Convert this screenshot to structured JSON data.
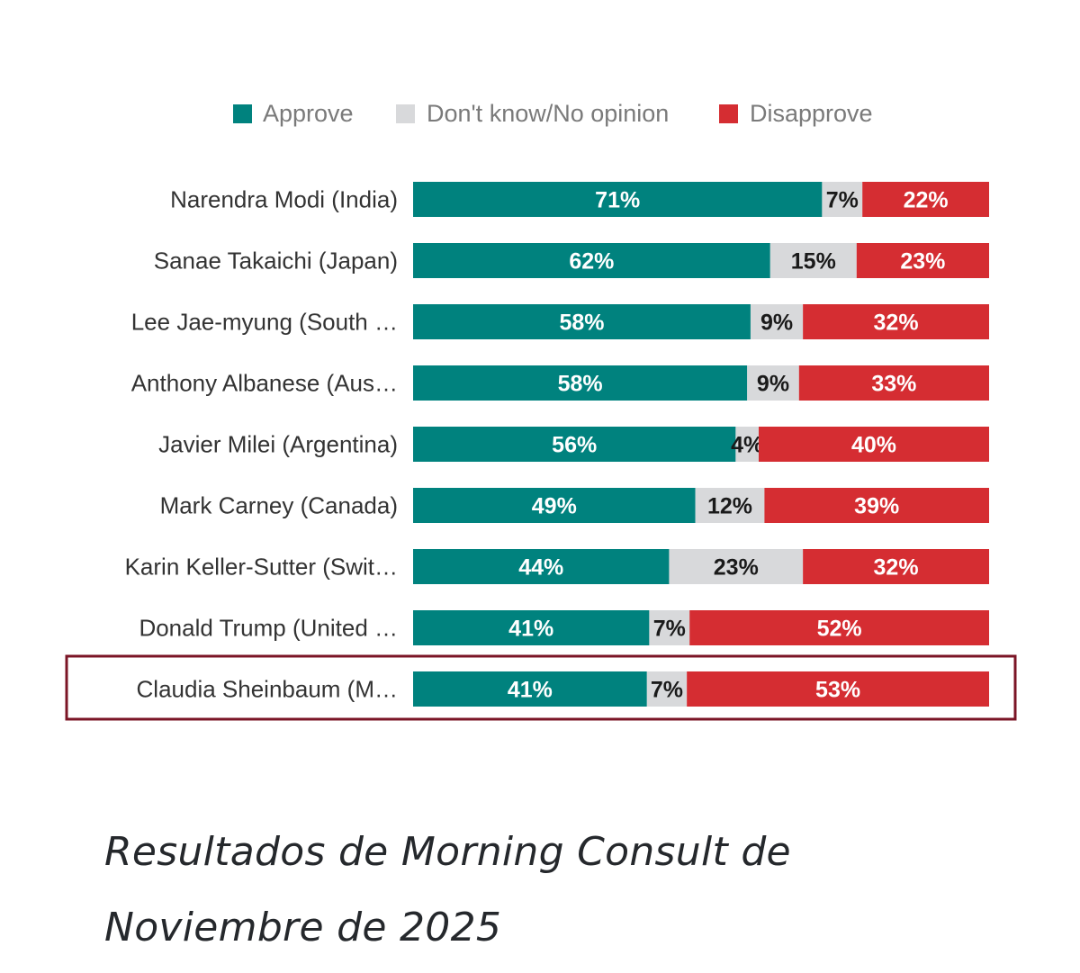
{
  "chart_data": {
    "type": "bar",
    "orientation": "horizontal",
    "stacked": true,
    "normalized_percent": true,
    "categories": [
      "Narendra Modi (India)",
      "Sanae Takaichi (Japan)",
      "Lee Jae-myung (South …",
      "Anthony Albanese (Aus…",
      "Javier Milei (Argentina)",
      "Mark Carney (Canada)",
      "Karin Keller-Sutter (Swit…",
      "Donald Trump (United …",
      "Claudia Sheinbaum (M…"
    ],
    "series": [
      {
        "name": "Approve",
        "color": "#00827e",
        "label_color": "#ffffff",
        "values": [
          71,
          62,
          58,
          58,
          56,
          49,
          44,
          41,
          41
        ]
      },
      {
        "name": "Don't know/No opinion",
        "color": "#d8d9db",
        "label_color": "#1a1a1a",
        "values": [
          7,
          15,
          9,
          9,
          4,
          12,
          23,
          7,
          7
        ]
      },
      {
        "name": "Disapprove",
        "color": "#d52d32",
        "label_color": "#ffffff",
        "values": [
          22,
          23,
          32,
          33,
          40,
          39,
          32,
          52,
          53
        ]
      }
    ],
    "value_suffix": "%",
    "legend_position": "top",
    "grid": false,
    "highlighted_category": "Claudia Sheinbaum (M…",
    "highlight_color": "#7b1526"
  },
  "caption": "Resultados de Morning Consult de Noviembre de 2025"
}
